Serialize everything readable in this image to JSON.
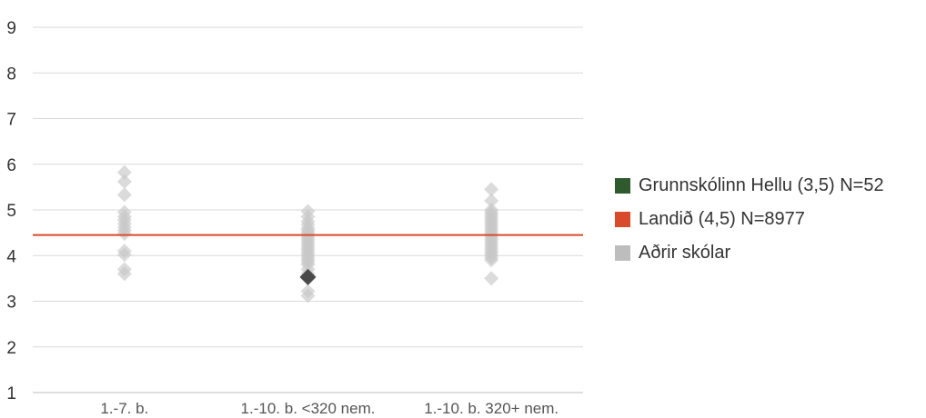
{
  "chart_data": {
    "type": "scatter",
    "ylim": [
      1,
      9
    ],
    "yticks": [
      "1",
      "2",
      "3",
      "4",
      "5",
      "6",
      "7",
      "8",
      "9"
    ],
    "categories": [
      "1.-7. b.",
      "1.-10. b. <320 nem.",
      "1.-10. b. 320+ nem."
    ],
    "reference_line": {
      "value": 4.45,
      "color": "#d94a2b"
    },
    "series": [
      {
        "name": "Aðrir skólar",
        "color": "#c8c8c8",
        "points": [
          {
            "category": 0,
            "values": [
              5.82,
              5.62,
              5.33,
              4.95,
              4.85,
              4.78,
              4.7,
              4.62,
              4.55,
              4.48,
              4.1,
              4.02,
              3.7,
              3.6
            ]
          },
          {
            "category": 1,
            "values": [
              4.97,
              4.85,
              4.75,
              4.68,
              4.6,
              4.55,
              4.5,
              4.45,
              4.4,
              4.35,
              4.3,
              4.25,
              4.2,
              4.15,
              4.1,
              4.05,
              4.0,
              3.95,
              3.9,
              3.85,
              3.8,
              3.7,
              3.6,
              3.5,
              3.22,
              3.12
            ]
          },
          {
            "category": 2,
            "values": [
              5.45,
              5.2,
              5.0,
              4.95,
              4.9,
              4.85,
              4.8,
              4.75,
              4.7,
              4.65,
              4.6,
              4.55,
              4.5,
              4.45,
              4.4,
              4.35,
              4.3,
              4.25,
              4.2,
              4.15,
              4.1,
              4.05,
              4.0,
              3.95,
              3.9,
              3.5
            ]
          }
        ]
      },
      {
        "name": "Grunnskólinn Hellu (3,5) N=52",
        "color": "#2e5a2e",
        "points": [
          {
            "category": 1,
            "values": [
              3.53
            ]
          }
        ]
      }
    ],
    "legend": {
      "placement": "right",
      "entries": [
        {
          "label": "Grunnskólinn Hellu (3,5) N=52",
          "color": "#2e5a2e"
        },
        {
          "label": "Landið (4,5) N=8977",
          "color": "#d94a2b"
        },
        {
          "label": "Aðrir skólar",
          "color": "#bdbdbd"
        }
      ]
    },
    "grid": true,
    "highlight_marker_color": "#4a4a4a"
  }
}
